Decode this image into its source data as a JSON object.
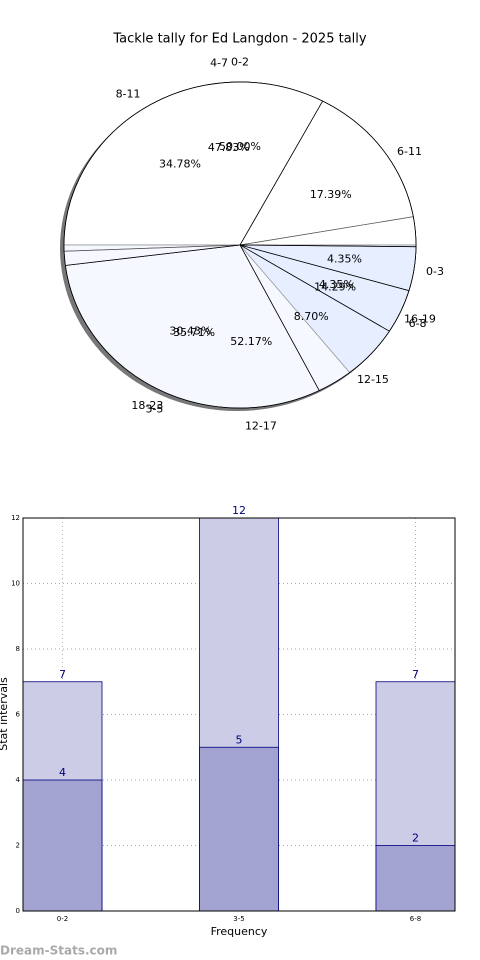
{
  "chart_data": [
    {
      "type": "pie",
      "title": "Tackle tally for Ed Langdon - 2025 tally",
      "series": [
        {
          "categories": [
            "0-2",
            "3-5",
            "6-8"
          ],
          "values": [
            50.0,
            35.71,
            14.29
          ],
          "value_labels": [
            "50.00%",
            "35.71%",
            "14.29%"
          ],
          "colors": [
            "#ffffff",
            "#eaf0ff",
            "#c5d8ff"
          ]
        },
        {
          "categories": [
            "4-7",
            "12-17"
          ],
          "values": [
            47.83,
            52.17
          ],
          "value_labels": [
            "47.83%",
            "52.17%"
          ],
          "colors": [
            "#ffffff",
            "#ffffff"
          ]
        },
        {
          "categories": [
            "6-11",
            "0-3",
            "16-19",
            "12-15",
            "18-23",
            "8-11"
          ],
          "values": [
            17.39,
            4.35,
            4.35,
            8.7,
            30.43,
            34.78
          ],
          "value_labels": [
            "17.39%",
            "4.35%",
            "4.35%",
            "8.70%",
            "30.43%",
            "34.78%"
          ],
          "colors": [
            "#ffffff",
            "#ffffff",
            "#ffffff",
            "#ffffff",
            "#ffffff",
            "#ffffff"
          ]
        }
      ]
    },
    {
      "type": "bar",
      "xlabel": "Frequency",
      "ylabel": "Stat intervals",
      "categories": [
        "0-2",
        "3-5",
        "6-8"
      ],
      "series": [
        {
          "color": "#ccccE6",
          "values": [
            7,
            12,
            7
          ]
        },
        {
          "color": "#a3a3d1",
          "values": [
            4,
            5,
            2
          ]
        }
      ],
      "ylim": [
        0,
        12
      ],
      "yticks": [
        0,
        2,
        4,
        6,
        8,
        10,
        12
      ],
      "grid": true
    }
  ],
  "watermark": "Dream-Stats.com"
}
